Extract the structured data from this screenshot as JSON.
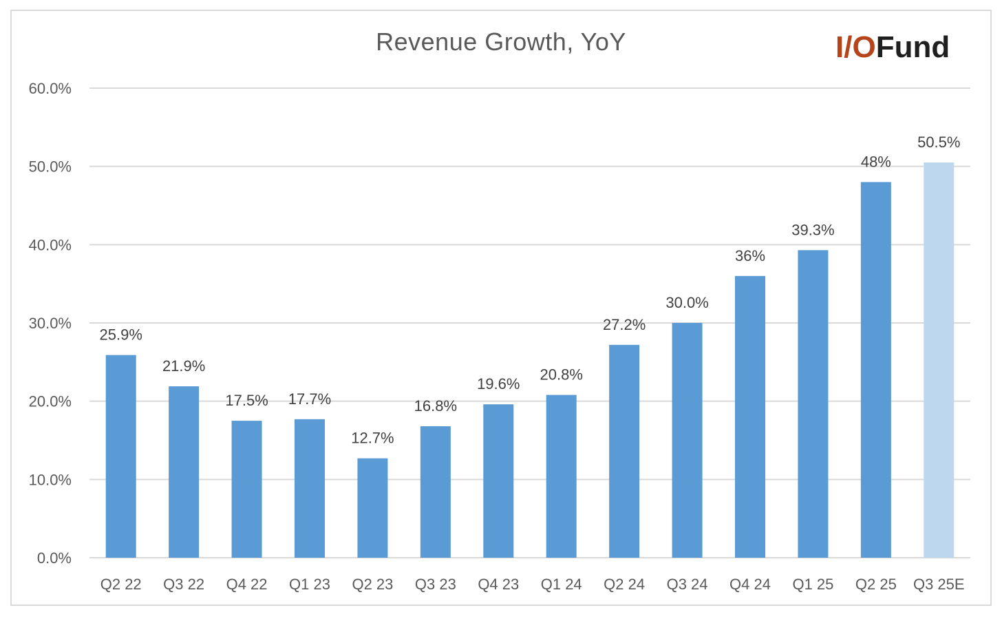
{
  "logo": {
    "io": "I/O",
    "fund": "Fund"
  },
  "chart_data": {
    "type": "bar",
    "title": "Revenue Growth, YoY",
    "xlabel": "",
    "ylabel": "",
    "categories": [
      "Q2 22",
      "Q3 22",
      "Q4 22",
      "Q1 23",
      "Q2 23",
      "Q3 23",
      "Q4 23",
      "Q1 24",
      "Q2 24",
      "Q3 24",
      "Q4 24",
      "Q1 25",
      "Q2 25",
      "Q3 25E"
    ],
    "values": [
      25.9,
      21.9,
      17.5,
      17.7,
      12.7,
      16.8,
      19.6,
      20.8,
      27.2,
      30.0,
      36,
      39.3,
      48,
      50.5
    ],
    "data_labels": [
      "25.9%",
      "21.9%",
      "17.5%",
      "17.7%",
      "12.7%",
      "16.8%",
      "19.6%",
      "20.8%",
      "27.2%",
      "30.0%",
      "36%",
      "39.3%",
      "48%",
      "50.5%"
    ],
    "estimate": [
      false,
      false,
      false,
      false,
      false,
      false,
      false,
      false,
      false,
      false,
      false,
      false,
      false,
      true
    ],
    "y_ticks": [
      0,
      10,
      20,
      30,
      40,
      50,
      60
    ],
    "y_tick_labels": [
      "0.0%",
      "10.0%",
      "20.0%",
      "30.0%",
      "40.0%",
      "50.0%",
      "60.0%"
    ],
    "ylim": [
      0,
      60
    ],
    "grid": true,
    "colors": {
      "bar": "#5b9bd5",
      "estimate_bar": "#bdd7ee",
      "grid": "#d9d9d9"
    }
  }
}
